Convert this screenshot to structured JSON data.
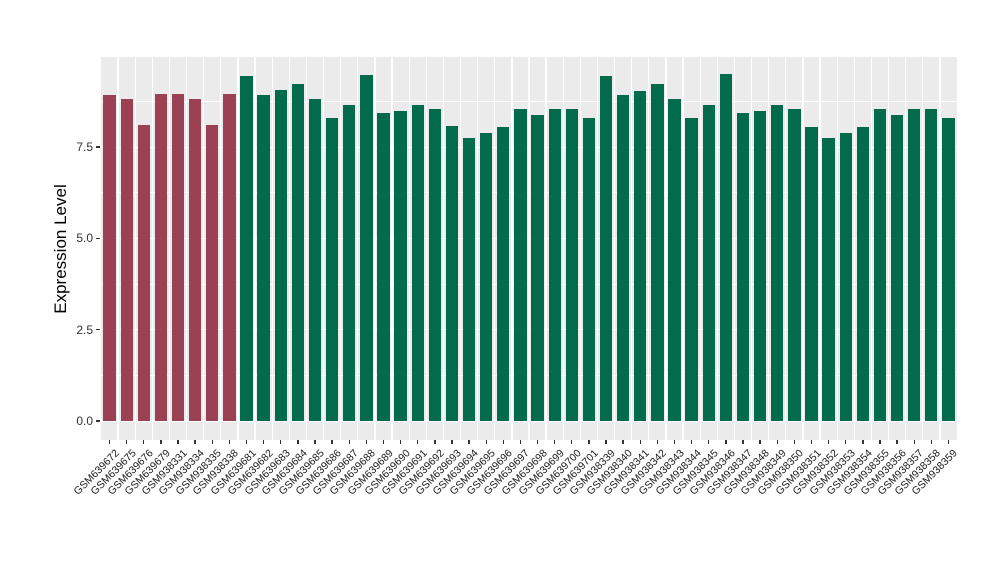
{
  "chart_data": {
    "type": "bar",
    "ylabel": "Expression Level",
    "xlabel": "",
    "ylim": [
      -0.52,
      9.97
    ],
    "grid": true,
    "legend_position": "none",
    "panel_background": "#EBEBEB",
    "grid_color": "#FFFFFF",
    "palette": {
      "red": "#9C4154",
      "green": "#026B4B"
    },
    "yticks": {
      "values": [
        0,
        2.5,
        5.0,
        7.5
      ],
      "labels": [
        "0.0",
        "2.5",
        "5.0",
        "7.5"
      ]
    },
    "yminor": [
      1.25,
      3.75,
      6.25,
      8.75
    ],
    "categories": [
      "GSM639672",
      "GSM639675",
      "GSM639676",
      "GSM639679",
      "GSM938331",
      "GSM938334",
      "GSM938335",
      "GSM938338",
      "GSM639681",
      "GSM639682",
      "GSM639683",
      "GSM639684",
      "GSM639685",
      "GSM639686",
      "GSM639687",
      "GSM639688",
      "GSM639689",
      "GSM639690",
      "GSM639691",
      "GSM639692",
      "GSM639693",
      "GSM639694",
      "GSM639695",
      "GSM639696",
      "GSM639697",
      "GSM639698",
      "GSM639699",
      "GSM639700",
      "GSM639701",
      "GSM938339",
      "GSM938340",
      "GSM938341",
      "GSM938342",
      "GSM938343",
      "GSM938344",
      "GSM938345",
      "GSM938346",
      "GSM938347",
      "GSM938348",
      "GSM938349",
      "GSM938350",
      "GSM938351",
      "GSM938352",
      "GSM938353",
      "GSM938354",
      "GSM938355",
      "GSM938356",
      "GSM938357",
      "GSM938358",
      "GSM938359"
    ],
    "series": [
      {
        "name": "Expression Level",
        "values": [
          8.93,
          8.83,
          8.12,
          8.96,
          8.96,
          8.83,
          8.12,
          8.96,
          9.44,
          8.94,
          9.06,
          9.24,
          8.83,
          8.3,
          8.65,
          9.49,
          8.43,
          8.5,
          8.66,
          8.54,
          8.07,
          7.76,
          7.9,
          8.06,
          8.54,
          8.37,
          8.54,
          8.55,
          8.31,
          9.44,
          8.94,
          9.05,
          9.24,
          8.83,
          8.3,
          8.66,
          9.51,
          8.43,
          8.5,
          8.65,
          8.54,
          8.06,
          7.76,
          7.9,
          8.06,
          8.54,
          8.37,
          8.55,
          8.55,
          8.3
        ]
      }
    ],
    "bar_groups": [
      "red",
      "red",
      "red",
      "red",
      "red",
      "red",
      "red",
      "red",
      "green",
      "green",
      "green",
      "green",
      "green",
      "green",
      "green",
      "green",
      "green",
      "green",
      "green",
      "green",
      "green",
      "green",
      "green",
      "green",
      "green",
      "green",
      "green",
      "green",
      "green",
      "green",
      "green",
      "green",
      "green",
      "green",
      "green",
      "green",
      "green",
      "green",
      "green",
      "green",
      "green",
      "green",
      "green",
      "green",
      "green",
      "green",
      "green",
      "green",
      "green",
      "green"
    ]
  }
}
